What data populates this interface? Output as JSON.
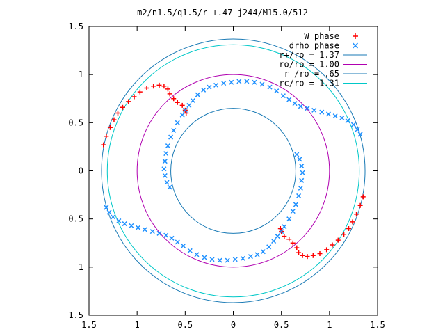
{
  "chart_data": {
    "type": "scatter",
    "title": "m2/n1.5/q1.5/r-+.47-j244/M15.0/512",
    "xlabel": "",
    "ylabel": "",
    "xlim": [
      -1.5,
      1.5
    ],
    "ylim": [
      -1.5,
      1.5
    ],
    "x_ticks": [
      -1.5,
      -1,
      -0.5,
      0,
      0.5,
      1,
      1.5
    ],
    "y_ticks": [
      -1.5,
      -1,
      -0.5,
      0,
      0.5,
      1,
      1.5
    ],
    "x_tick_labels": [
      "1.5",
      "1",
      "0.5",
      "0",
      "0.5",
      "1",
      "1.5"
    ],
    "y_tick_labels": [
      "1.5",
      "1",
      "0.5",
      "0",
      "0.5",
      "1",
      "1.5"
    ],
    "grid": false,
    "legend_position": "top-right",
    "circles": [
      {
        "label": "r+/ro = 1.37",
        "radius": 1.37,
        "color": "#1a7ab5"
      },
      {
        "label": "ro/ro = 1.00",
        "radius": 1.0,
        "color": "#b000b0"
      },
      {
        "label": "r-/ro = .65",
        "radius": 0.65,
        "color": "#1a7ab5"
      },
      {
        "label": "rc/ro = 1.31",
        "radius": 1.31,
        "color": "#00c8c8"
      }
    ],
    "series": [
      {
        "name": "W phase",
        "marker": "+",
        "color": "#ff0000",
        "points": [
          [
            -1.35,
            0.27
          ],
          [
            -1.32,
            0.36
          ],
          [
            -1.28,
            0.45
          ],
          [
            -1.24,
            0.53
          ],
          [
            -1.2,
            0.6
          ],
          [
            -1.15,
            0.66
          ],
          [
            -1.09,
            0.72
          ],
          [
            -1.03,
            0.77
          ],
          [
            -0.97,
            0.82
          ],
          [
            -0.9,
            0.86
          ],
          [
            -0.83,
            0.88
          ],
          [
            -0.77,
            0.89
          ],
          [
            -0.72,
            0.88
          ],
          [
            -0.68,
            0.85
          ],
          [
            -0.66,
            0.8
          ],
          [
            -0.62,
            0.75
          ],
          [
            -0.58,
            0.71
          ],
          [
            -0.53,
            0.68
          ],
          [
            -0.5,
            0.63
          ],
          [
            -0.49,
            0.6
          ],
          [
            1.35,
            -0.27
          ],
          [
            1.32,
            -0.36
          ],
          [
            1.28,
            -0.45
          ],
          [
            1.24,
            -0.53
          ],
          [
            1.2,
            -0.6
          ],
          [
            1.15,
            -0.66
          ],
          [
            1.09,
            -0.72
          ],
          [
            1.03,
            -0.77
          ],
          [
            0.97,
            -0.82
          ],
          [
            0.9,
            -0.86
          ],
          [
            0.83,
            -0.88
          ],
          [
            0.77,
            -0.89
          ],
          [
            0.72,
            -0.88
          ],
          [
            0.68,
            -0.85
          ],
          [
            0.66,
            -0.8
          ],
          [
            0.62,
            -0.75
          ],
          [
            0.58,
            -0.71
          ],
          [
            0.53,
            -0.68
          ],
          [
            0.5,
            -0.63
          ],
          [
            0.49,
            -0.6
          ]
        ]
      },
      {
        "name": "drho phase",
        "marker": "x",
        "color": "#1e90ff",
        "points": [
          [
            -0.66,
            -0.17
          ],
          [
            -0.69,
            -0.12
          ],
          [
            -0.71,
            -0.05
          ],
          [
            -0.72,
            0.02
          ],
          [
            -0.71,
            0.1
          ],
          [
            -0.7,
            0.18
          ],
          [
            -0.68,
            0.26
          ],
          [
            -0.65,
            0.35
          ],
          [
            -0.62,
            0.42
          ],
          [
            -0.58,
            0.5
          ],
          [
            -0.53,
            0.58
          ],
          [
            -0.5,
            0.63
          ],
          [
            -0.46,
            0.68
          ],
          [
            -0.42,
            0.73
          ],
          [
            -0.37,
            0.79
          ],
          [
            -0.31,
            0.84
          ],
          [
            -0.25,
            0.87
          ],
          [
            -0.18,
            0.89
          ],
          [
            -0.1,
            0.91
          ],
          [
            -0.02,
            0.92
          ],
          [
            0.06,
            0.93
          ],
          [
            0.14,
            0.93
          ],
          [
            0.22,
            0.92
          ],
          [
            0.3,
            0.9
          ],
          [
            0.38,
            0.87
          ],
          [
            0.45,
            0.83
          ],
          [
            0.52,
            0.78
          ],
          [
            0.58,
            0.74
          ],
          [
            0.64,
            0.7
          ],
          [
            0.7,
            0.67
          ],
          [
            0.77,
            0.65
          ],
          [
            0.84,
            0.63
          ],
          [
            0.92,
            0.61
          ],
          [
            0.99,
            0.59
          ],
          [
            1.06,
            0.57
          ],
          [
            1.13,
            0.55
          ],
          [
            1.19,
            0.52
          ],
          [
            1.25,
            0.48
          ],
          [
            1.29,
            0.43
          ],
          [
            1.32,
            0.38
          ],
          [
            0.66,
            0.17
          ],
          [
            0.69,
            0.12
          ],
          [
            0.71,
            0.05
          ],
          [
            0.72,
            -0.02
          ],
          [
            0.71,
            -0.1
          ],
          [
            0.7,
            -0.18
          ],
          [
            0.68,
            -0.26
          ],
          [
            0.65,
            -0.35
          ],
          [
            0.62,
            -0.42
          ],
          [
            0.58,
            -0.5
          ],
          [
            0.53,
            -0.58
          ],
          [
            0.5,
            -0.63
          ],
          [
            0.46,
            -0.68
          ],
          [
            0.42,
            -0.73
          ],
          [
            0.37,
            -0.79
          ],
          [
            0.31,
            -0.84
          ],
          [
            0.25,
            -0.87
          ],
          [
            0.18,
            -0.89
          ],
          [
            0.1,
            -0.91
          ],
          [
            0.02,
            -0.92
          ],
          [
            -0.06,
            -0.93
          ],
          [
            -0.14,
            -0.93
          ],
          [
            -0.22,
            -0.92
          ],
          [
            -0.3,
            -0.9
          ],
          [
            -0.38,
            -0.87
          ],
          [
            -0.45,
            -0.83
          ],
          [
            -0.52,
            -0.78
          ],
          [
            -0.58,
            -0.74
          ],
          [
            -0.64,
            -0.7
          ],
          [
            -0.7,
            -0.67
          ],
          [
            -0.77,
            -0.65
          ],
          [
            -0.84,
            -0.63
          ],
          [
            -0.92,
            -0.61
          ],
          [
            -0.99,
            -0.59
          ],
          [
            -1.06,
            -0.57
          ],
          [
            -1.13,
            -0.55
          ],
          [
            -1.19,
            -0.52
          ],
          [
            -1.25,
            -0.48
          ],
          [
            -1.29,
            -0.43
          ],
          [
            -1.32,
            -0.38
          ]
        ]
      }
    ]
  }
}
